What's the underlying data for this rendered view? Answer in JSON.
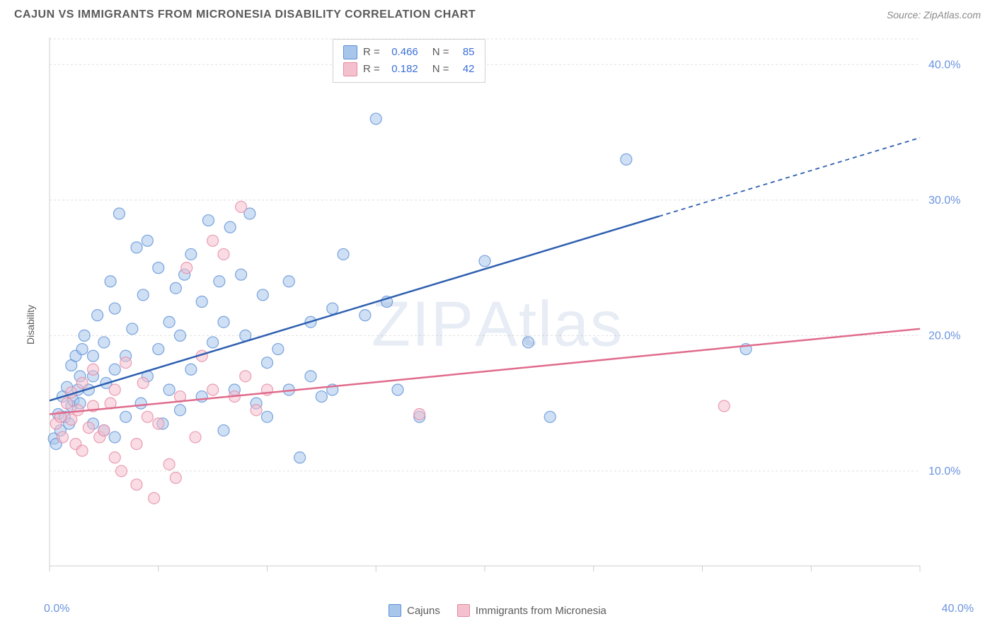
{
  "title": "CAJUN VS IMMIGRANTS FROM MICRONESIA DISABILITY CORRELATION CHART",
  "source": "Source: ZipAtlas.com",
  "watermark": "ZIPAtlas",
  "ylabel": "Disability",
  "chart": {
    "type": "scatter",
    "xlim": [
      0,
      40
    ],
    "ylim": [
      3,
      42
    ],
    "xtick_positions": [
      0,
      5,
      10,
      15,
      20,
      25,
      30,
      35,
      40
    ],
    "ytick_labels": [
      {
        "v": 10,
        "t": "10.0%"
      },
      {
        "v": 20,
        "t": "20.0%"
      },
      {
        "v": 30,
        "t": "30.0%"
      },
      {
        "v": 40,
        "t": "40.0%"
      }
    ],
    "x_axis_label_left": "0.0%",
    "x_axis_label_right": "40.0%",
    "grid_color": "#e0e0e0",
    "background_color": "#ffffff",
    "axis_color": "#cccccc",
    "tick_label_color": "#6a94e0",
    "marker_radius": 8,
    "marker_opacity": 0.55,
    "series": [
      {
        "name": "Cajuns",
        "color_fill": "#a8c6ec",
        "color_stroke": "#5b8fd6",
        "line_color": "#2e5fb0",
        "points": [
          [
            0.2,
            12.4
          ],
          [
            0.3,
            12.0
          ],
          [
            0.4,
            14.2
          ],
          [
            0.5,
            13.0
          ],
          [
            0.6,
            15.5
          ],
          [
            0.7,
            14.0
          ],
          [
            0.8,
            16.2
          ],
          [
            0.9,
            13.5
          ],
          [
            1.0,
            17.8
          ],
          [
            1.0,
            14.8
          ],
          [
            1.1,
            15.2
          ],
          [
            1.2,
            18.5
          ],
          [
            1.3,
            16.0
          ],
          [
            1.4,
            17.0
          ],
          [
            1.4,
            15.0
          ],
          [
            1.5,
            19.0
          ],
          [
            1.6,
            20.0
          ],
          [
            1.8,
            16.0
          ],
          [
            2.0,
            18.5
          ],
          [
            2.0,
            13.5
          ],
          [
            2.0,
            17.0
          ],
          [
            2.2,
            21.5
          ],
          [
            2.5,
            13.0
          ],
          [
            2.5,
            19.5
          ],
          [
            2.6,
            16.5
          ],
          [
            2.8,
            24.0
          ],
          [
            3.0,
            12.5
          ],
          [
            3.0,
            17.5
          ],
          [
            3.0,
            22.0
          ],
          [
            3.2,
            29.0
          ],
          [
            3.5,
            14.0
          ],
          [
            3.5,
            18.5
          ],
          [
            3.8,
            20.5
          ],
          [
            4.0,
            26.5
          ],
          [
            4.2,
            15.0
          ],
          [
            4.3,
            23.0
          ],
          [
            4.5,
            17.0
          ],
          [
            4.5,
            27.0
          ],
          [
            5.0,
            19.0
          ],
          [
            5.0,
            25.0
          ],
          [
            5.2,
            13.5
          ],
          [
            5.5,
            21.0
          ],
          [
            5.5,
            16.0
          ],
          [
            5.8,
            23.5
          ],
          [
            6.0,
            14.5
          ],
          [
            6.0,
            20.0
          ],
          [
            6.2,
            24.5
          ],
          [
            6.5,
            17.5
          ],
          [
            6.5,
            26.0
          ],
          [
            7.0,
            15.5
          ],
          [
            7.0,
            22.5
          ],
          [
            7.3,
            28.5
          ],
          [
            7.5,
            19.5
          ],
          [
            7.8,
            24.0
          ],
          [
            8.0,
            13.0
          ],
          [
            8.0,
            21.0
          ],
          [
            8.3,
            28.0
          ],
          [
            8.5,
            16.0
          ],
          [
            8.8,
            24.5
          ],
          [
            9.0,
            20.0
          ],
          [
            9.2,
            29.0
          ],
          [
            9.5,
            15.0
          ],
          [
            9.8,
            23.0
          ],
          [
            10.0,
            18.0
          ],
          [
            10.0,
            14.0
          ],
          [
            10.5,
            19.0
          ],
          [
            11.0,
            24.0
          ],
          [
            11.0,
            16.0
          ],
          [
            11.5,
            11.0
          ],
          [
            12.0,
            21.0
          ],
          [
            12.0,
            17.0
          ],
          [
            12.5,
            15.5
          ],
          [
            13.0,
            22.0
          ],
          [
            13.0,
            16.0
          ],
          [
            13.5,
            26.0
          ],
          [
            14.5,
            21.5
          ],
          [
            15.0,
            36.0
          ],
          [
            15.5,
            22.5
          ],
          [
            16.0,
            16.0
          ],
          [
            17.0,
            14.0
          ],
          [
            20.0,
            25.5
          ],
          [
            22.0,
            19.5
          ],
          [
            23.0,
            14.0
          ],
          [
            26.5,
            33.0
          ],
          [
            32.0,
            19.0
          ]
        ],
        "regression": {
          "x1": 0,
          "y1": 15.2,
          "x2": 28,
          "y2": 28.8,
          "x2_dash": 40,
          "y2_dash": 34.6
        }
      },
      {
        "name": "Immigrants from Micronesia",
        "color_fill": "#f4c0cd",
        "color_stroke": "#e588a3",
        "line_color": "#e06b8c",
        "points": [
          [
            0.3,
            13.5
          ],
          [
            0.5,
            14.0
          ],
          [
            0.6,
            12.5
          ],
          [
            0.8,
            15.0
          ],
          [
            1.0,
            13.8
          ],
          [
            1.0,
            15.8
          ],
          [
            1.2,
            12.0
          ],
          [
            1.3,
            14.5
          ],
          [
            1.5,
            16.5
          ],
          [
            1.5,
            11.5
          ],
          [
            1.8,
            13.2
          ],
          [
            2.0,
            14.8
          ],
          [
            2.0,
            17.5
          ],
          [
            2.3,
            12.5
          ],
          [
            2.5,
            13.0
          ],
          [
            2.8,
            15.0
          ],
          [
            3.0,
            11.0
          ],
          [
            3.0,
            16.0
          ],
          [
            3.3,
            10.0
          ],
          [
            3.5,
            18.0
          ],
          [
            4.0,
            12.0
          ],
          [
            4.0,
            9.0
          ],
          [
            4.3,
            16.5
          ],
          [
            4.5,
            14.0
          ],
          [
            4.8,
            8.0
          ],
          [
            5.0,
            13.5
          ],
          [
            5.5,
            10.5
          ],
          [
            5.8,
            9.5
          ],
          [
            6.0,
            15.5
          ],
          [
            6.3,
            25.0
          ],
          [
            6.7,
            12.5
          ],
          [
            7.0,
            18.5
          ],
          [
            7.5,
            16.0
          ],
          [
            7.5,
            27.0
          ],
          [
            8.0,
            26.0
          ],
          [
            8.5,
            15.5
          ],
          [
            8.8,
            29.5
          ],
          [
            9.0,
            17.0
          ],
          [
            9.5,
            14.5
          ],
          [
            10.0,
            16.0
          ],
          [
            17.0,
            14.2
          ],
          [
            31.0,
            14.8
          ]
        ],
        "regression": {
          "x1": 0,
          "y1": 14.2,
          "x2": 40,
          "y2": 20.5,
          "x2_dash": 40,
          "y2_dash": 20.5
        }
      }
    ]
  },
  "stats_box": {
    "rows": [
      {
        "color_fill": "#a8c6ec",
        "color_stroke": "#5b8fd6",
        "r_label": "R =",
        "r_val": "0.466",
        "n_label": "N =",
        "n_val": "85"
      },
      {
        "color_fill": "#f4c0cd",
        "color_stroke": "#e588a3",
        "r_label": "R =",
        "r_val": "0.182",
        "n_label": "N =",
        "n_val": "42"
      }
    ]
  },
  "bottom_legend": [
    {
      "label": "Cajuns",
      "fill": "#a8c6ec",
      "stroke": "#5b8fd6"
    },
    {
      "label": "Immigrants from Micronesia",
      "fill": "#f4c0cd",
      "stroke": "#e588a3"
    }
  ]
}
